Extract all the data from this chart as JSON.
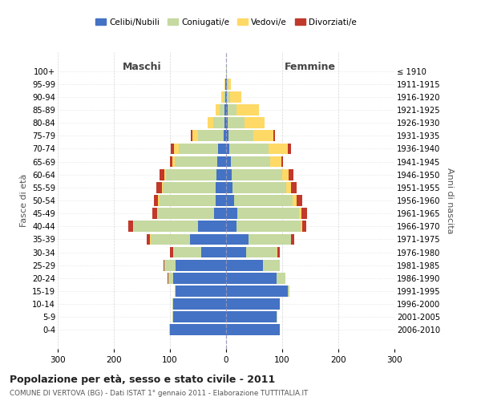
{
  "age_groups": [
    "0-4",
    "5-9",
    "10-14",
    "15-19",
    "20-24",
    "25-29",
    "30-34",
    "35-39",
    "40-44",
    "45-49",
    "50-54",
    "55-59",
    "60-64",
    "65-69",
    "70-74",
    "75-79",
    "80-84",
    "85-89",
    "90-94",
    "95-99",
    "100+"
  ],
  "birth_years": [
    "2006-2010",
    "2001-2005",
    "1996-2000",
    "1991-1995",
    "1986-1990",
    "1981-1985",
    "1976-1980",
    "1971-1975",
    "1966-1970",
    "1961-1965",
    "1956-1960",
    "1951-1955",
    "1946-1950",
    "1941-1945",
    "1936-1940",
    "1931-1935",
    "1926-1930",
    "1921-1925",
    "1916-1920",
    "1911-1915",
    "≤ 1910"
  ],
  "males": {
    "celibi": [
      100,
      95,
      95,
      90,
      95,
      90,
      45,
      65,
      50,
      22,
      19,
      18,
      17,
      16,
      15,
      5,
      3,
      3,
      2,
      1,
      0
    ],
    "coniugati": [
      1,
      1,
      1,
      2,
      8,
      20,
      50,
      70,
      115,
      100,
      100,
      95,
      90,
      75,
      70,
      45,
      20,
      8,
      3,
      1,
      0
    ],
    "vedovi": [
      0,
      0,
      0,
      0,
      0,
      0,
      0,
      1,
      1,
      1,
      2,
      2,
      3,
      5,
      8,
      10,
      10,
      8,
      4,
      1,
      0
    ],
    "divorziati": [
      0,
      0,
      0,
      0,
      1,
      1,
      5,
      6,
      8,
      8,
      8,
      10,
      8,
      4,
      5,
      3,
      0,
      0,
      0,
      0,
      0
    ]
  },
  "females": {
    "nubili": [
      95,
      90,
      95,
      110,
      90,
      65,
      35,
      40,
      18,
      20,
      14,
      12,
      10,
      8,
      5,
      4,
      3,
      3,
      2,
      1,
      0
    ],
    "coniugate": [
      1,
      1,
      1,
      3,
      15,
      30,
      55,
      75,
      115,
      110,
      105,
      95,
      90,
      70,
      70,
      45,
      30,
      15,
      5,
      3,
      1
    ],
    "vedove": [
      0,
      0,
      0,
      0,
      0,
      0,
      1,
      1,
      2,
      4,
      6,
      8,
      12,
      20,
      35,
      35,
      35,
      40,
      20,
      5,
      1
    ],
    "divorziate": [
      0,
      0,
      0,
      0,
      0,
      1,
      4,
      5,
      8,
      10,
      10,
      10,
      8,
      4,
      5,
      3,
      0,
      0,
      0,
      0,
      0
    ]
  },
  "colors": {
    "celibi": "#4472C4",
    "coniugati": "#C5D9A0",
    "vedovi": "#FFD966",
    "divorziati": "#C0392B"
  },
  "xlim": 300,
  "title": "Popolazione per età, sesso e stato civile - 2011",
  "subtitle": "COMUNE DI VERTOVA (BG) - Dati ISTAT 1° gennaio 2011 - Elaborazione TUTTITALIA.IT",
  "legend_labels": [
    "Celibi/Nubili",
    "Coniugati/e",
    "Vedovi/e",
    "Divorziati/e"
  ],
  "ylabel_left": "Fasce di età",
  "ylabel_right": "Anni di nascita",
  "xlabel_maschi": "Maschi",
  "xlabel_femmine": "Femmine"
}
